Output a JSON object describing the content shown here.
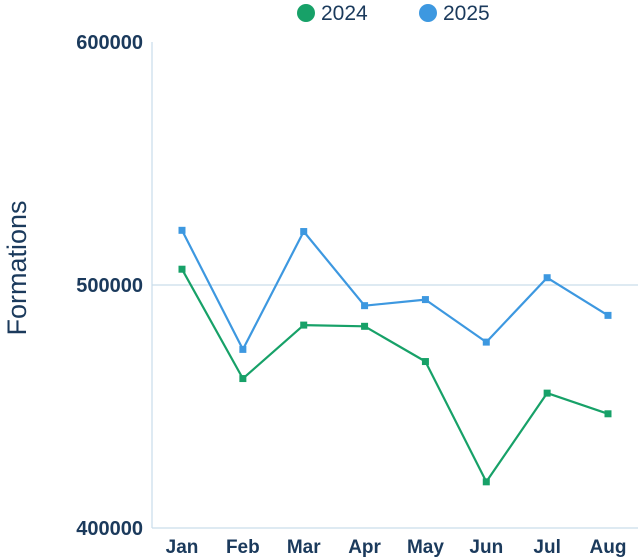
{
  "chart_data": {
    "type": "line",
    "title": "",
    "xlabel": "",
    "ylabel": "Formations",
    "categories": [
      "Jan",
      "Feb",
      "Mar",
      "Apr",
      "May",
      "Jun",
      "Jul",
      "Aug"
    ],
    "ylim": [
      400000,
      600000
    ],
    "yticks": [
      "400000",
      "500000",
      "600000"
    ],
    "gridlines": [
      500000
    ],
    "legend_position": "top",
    "series": [
      {
        "name": "2024",
        "color": "#17a168",
        "values": [
          506500,
          461500,
          483500,
          483000,
          468500,
          419000,
          455500,
          447000
        ]
      },
      {
        "name": "2025",
        "color": "#3d98e0",
        "values": [
          522500,
          473500,
          522000,
          491500,
          494000,
          476500,
          503000,
          487500
        ]
      }
    ]
  }
}
